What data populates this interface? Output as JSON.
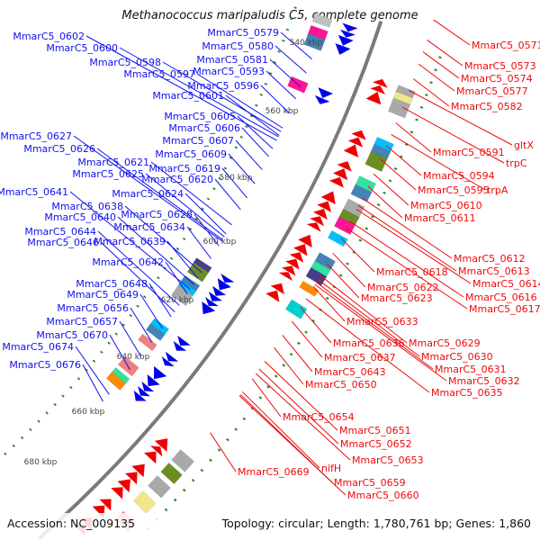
{
  "title": "Methanococcus maripaludis C5, complete genome",
  "footer": {
    "accession": "Accession: NC_009135",
    "topology": "Topology: circular; Length: 1,780,761 bp; Genes: 1,860"
  },
  "colors": {
    "forward": "#1010ee",
    "reverse": "#ee0a0a",
    "backbone": "#777777",
    "tick": "#2a8a2a"
  },
  "kbp_ticks": [
    "540 kbp",
    "560 kbp",
    "580 kbp",
    "600 kbp",
    "620 kbp",
    "640 kbp",
    "660 kbp",
    "680 kbp"
  ],
  "forward_labels": [
    "MmarC5_0602",
    "MmarC5_0600",
    "MmarC5_0598",
    "MmarC5_0597",
    "MmarC5_0596",
    "MmarC5_0601",
    "MmarC5_0579",
    "MmarC5_0580",
    "MmarC5_0581",
    "MmarC5_0593",
    "MmarC5_0605",
    "MmarC5_0606",
    "MmarC5_0607",
    "MmarC5_0609",
    "MmarC5_0627",
    "MmarC5_0626",
    "MmarC5_0621",
    "MmarC5_0625",
    "MmarC5_0619",
    "MmarC5_0620",
    "MmarC5_0624",
    "MmarC5_0641",
    "MmarC5_0638",
    "MmarC5_0640",
    "MmarC5_0628",
    "MmarC5_0634",
    "MmarC5_0644",
    "MmarC5_0646",
    "MmarC5_0639",
    "MmarC5_0642",
    "MmarC5_0648",
    "MmarC5_0649",
    "MmarC5_0656",
    "MmarC5_0657",
    "MmarC5_0670",
    "MmarC5_0674",
    "MmarC5_0676"
  ],
  "reverse_labels": [
    "MmarC5_0571",
    "MmarC5_0573",
    "MmarC5_0574",
    "MmarC5_0577",
    "MmarC5_0582",
    "gltX",
    "trpC",
    "MmarC5_0591",
    "MmarC5_0594",
    "MmarC5_0595",
    "trpA",
    "MmarC5_0610",
    "MmarC5_0611",
    "MmarC5_0612",
    "MmarC5_0613",
    "MmarC5_0614",
    "MmarC5_0616",
    "MmarC5_0617",
    "MmarC5_0618",
    "MmarC5_0622",
    "MmarC5_0623",
    "MmarC5_0633",
    "MmarC5_0629",
    "MmarC5_0636",
    "MmarC5_0630",
    "MmarC5_0637",
    "MmarC5_0631",
    "MmarC5_0632",
    "MmarC5_0643",
    "MmarC5_0635",
    "MmarC5_0650",
    "MmarC5_0654",
    "MmarC5_0651",
    "MmarC5_0652",
    "MmarC5_0653",
    "MmarC5_0669",
    "nifH",
    "MmarC5_0659",
    "MmarC5_0660"
  ]
}
